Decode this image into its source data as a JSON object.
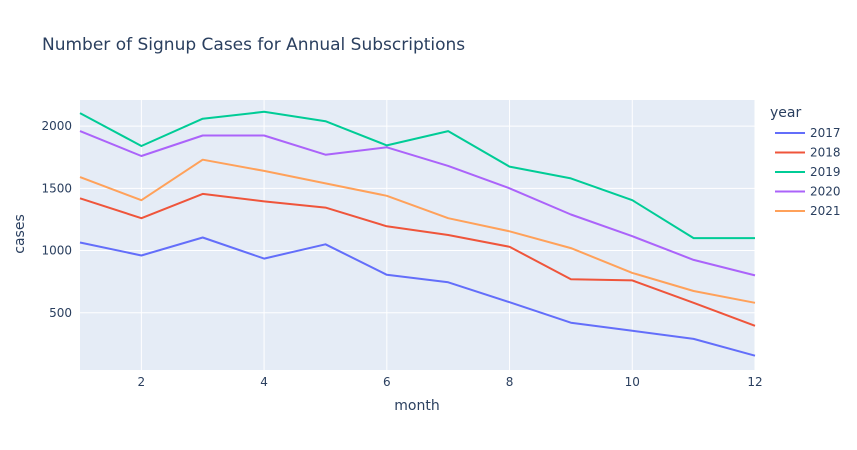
{
  "chart_data": {
    "type": "line",
    "title": "Number of Signup Cases for Annual Subscriptions",
    "xlabel": "month",
    "ylabel": "cases",
    "legend_title": "year",
    "legend_placement": "right",
    "grid": true,
    "xlim": [
      1,
      12
    ],
    "ylim": [
      40,
      2210
    ],
    "x_ticks": [
      2,
      4,
      6,
      8,
      10,
      12
    ],
    "y_ticks": [
      500,
      1000,
      1500,
      2000
    ],
    "x": [
      1,
      2,
      3,
      4,
      5,
      6,
      7,
      8,
      9,
      10,
      11,
      12
    ],
    "series": [
      {
        "name": "2017",
        "color": "#636efa",
        "values": [
          1065,
          960,
          1105,
          935,
          1050,
          805,
          745,
          585,
          420,
          355,
          290,
          155
        ]
      },
      {
        "name": "2018",
        "color": "#ef553b",
        "values": [
          1420,
          1260,
          1455,
          1395,
          1345,
          1195,
          1125,
          1030,
          770,
          760,
          580,
          395
        ]
      },
      {
        "name": "2019",
        "color": "#00cc96",
        "values": [
          2105,
          1840,
          2060,
          2115,
          2040,
          1845,
          1960,
          1675,
          1580,
          1405,
          1100,
          1100
        ]
      },
      {
        "name": "2020",
        "color": "#ab63fa",
        "values": [
          1960,
          1760,
          1925,
          1925,
          1770,
          1830,
          1680,
          1500,
          1290,
          1115,
          925,
          800
        ]
      },
      {
        "name": "2021",
        "color": "#ffa15a",
        "values": [
          1590,
          1405,
          1730,
          1640,
          1540,
          1440,
          1260,
          1155,
          1020,
          820,
          675,
          580
        ]
      }
    ]
  }
}
